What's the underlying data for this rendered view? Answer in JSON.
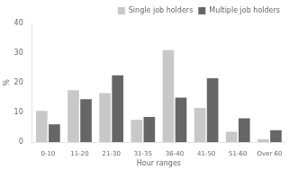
{
  "chart_data": {
    "type": "bar",
    "categories": [
      "0-10",
      "11-20",
      "21-30",
      "31-35",
      "36-40",
      "41-50",
      "51-60",
      "Over 60"
    ],
    "series": [
      {
        "name": "Single job holders",
        "color": "#c8c8c8",
        "values": [
          10.5,
          17.5,
          16.5,
          7.5,
          31.0,
          11.5,
          3.5,
          1.0
        ]
      },
      {
        "name": "Multiple job holders",
        "color": "#666666",
        "values": [
          6.0,
          14.5,
          22.5,
          8.5,
          15.0,
          21.5,
          8.0,
          4.0
        ]
      }
    ],
    "xlabel": "Hour ranges",
    "ylabel": "%",
    "ylim": [
      0,
      40
    ],
    "yticks": [
      0,
      10,
      20,
      30,
      40
    ],
    "grid": false,
    "legend": "upper right"
  }
}
